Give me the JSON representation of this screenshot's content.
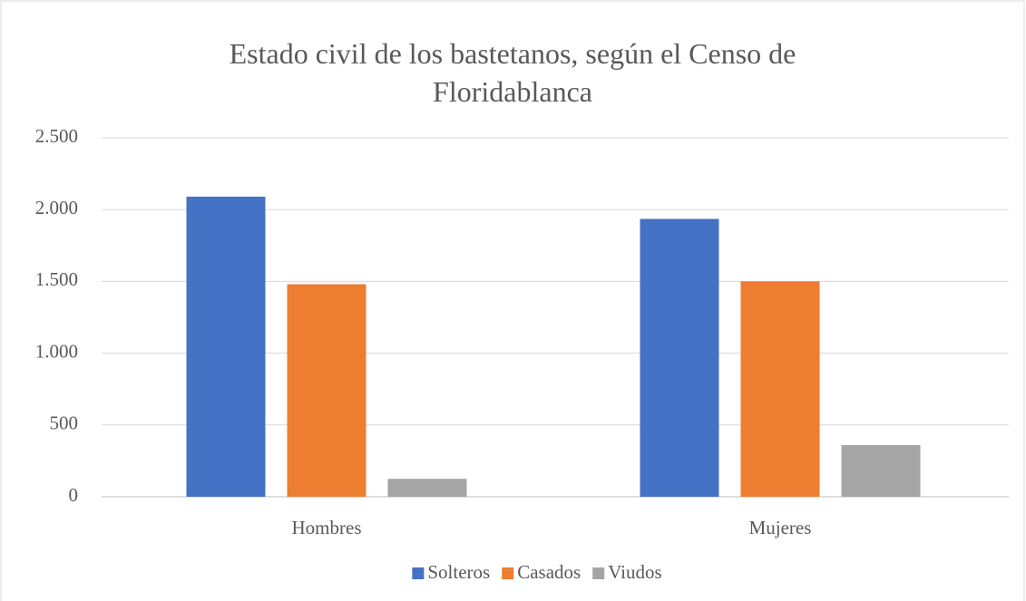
{
  "chart_data": {
    "type": "bar",
    "title": "Estado civil de los bastetanos, según el Censo de Floridablanca",
    "categories": [
      "Hombres",
      "Mujeres"
    ],
    "series": [
      {
        "name": "Solteros",
        "color": "#4472c4",
        "values": [
          2090,
          1935
        ]
      },
      {
        "name": "Casados",
        "color": "#ed7d31",
        "values": [
          1480,
          1500
        ]
      },
      {
        "name": "Viudos",
        "color": "#a5a5a5",
        "values": [
          125,
          360
        ]
      }
    ],
    "ylim": [
      0,
      2500
    ],
    "yticks": [
      0,
      500,
      {
        "value": 1000,
        "label": "1.000"
      },
      {
        "value": 1500,
        "label": "1.500"
      },
      {
        "value": 2000,
        "label": "2.000"
      },
      {
        "value": 2500,
        "label": "2.500"
      }
    ],
    "grid": true,
    "legend": "bottom"
  }
}
